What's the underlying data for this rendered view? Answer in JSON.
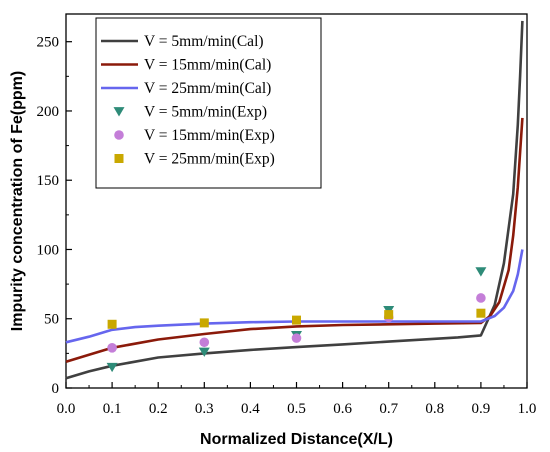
{
  "chart_data": {
    "type": "line",
    "xlabel": "Normalized Distance(X/L)",
    "ylabel": "Impurity concentration of Fe(ppm)",
    "xlim": [
      0.0,
      1.0
    ],
    "ylim": [
      0,
      270
    ],
    "xticks": [
      0.0,
      0.1,
      0.2,
      0.3,
      0.4,
      0.5,
      0.6,
      0.7,
      0.8,
      0.9,
      1.0
    ],
    "yticks": [
      0,
      50,
      100,
      150,
      200,
      250
    ],
    "xtick_labels": [
      "0.0",
      "0.1",
      "0.2",
      "0.3",
      "0.4",
      "0.5",
      "0.6",
      "0.7",
      "0.8",
      "0.9",
      "1.0"
    ],
    "ytick_labels": [
      "0",
      "50",
      "100",
      "150",
      "200",
      "250"
    ],
    "grid": false,
    "legend_position": "top-left",
    "series": [
      {
        "name": "V = 5mm/min(Cal)",
        "kind": "line",
        "color": "#404040",
        "x": [
          0.0,
          0.05,
          0.1,
          0.2,
          0.3,
          0.4,
          0.5,
          0.6,
          0.7,
          0.8,
          0.85,
          0.9,
          0.93,
          0.95,
          0.97,
          0.98,
          0.985,
          0.99
        ],
        "y": [
          7,
          12,
          16,
          22,
          25,
          27.5,
          29.5,
          31.5,
          33.5,
          35.5,
          36.5,
          38,
          60,
          90,
          140,
          190,
          225,
          265
        ]
      },
      {
        "name": "V = 15mm/min(Cal)",
        "kind": "line",
        "color": "#8b1a0a",
        "x": [
          0.0,
          0.05,
          0.1,
          0.2,
          0.3,
          0.4,
          0.5,
          0.6,
          0.7,
          0.8,
          0.9,
          0.92,
          0.94,
          0.96,
          0.97,
          0.98,
          0.99
        ],
        "y": [
          19,
          24,
          29,
          35,
          39,
          42.5,
          44.5,
          45.5,
          46,
          46.5,
          47,
          52,
          62,
          85,
          110,
          145,
          195
        ]
      },
      {
        "name": "V = 25mm/min(Cal)",
        "kind": "line",
        "color": "#6666ee",
        "x": [
          0.0,
          0.05,
          0.1,
          0.15,
          0.2,
          0.3,
          0.4,
          0.5,
          0.6,
          0.7,
          0.8,
          0.9,
          0.93,
          0.95,
          0.97,
          0.98,
          0.99
        ],
        "y": [
          33,
          37,
          42,
          44,
          45,
          46.5,
          47.5,
          48,
          48,
          48,
          48,
          48,
          52,
          58,
          70,
          82,
          100
        ]
      },
      {
        "name": "V = 5mm/min(Exp)",
        "kind": "scatter",
        "marker": "triangle-down",
        "color": "#2e8b78",
        "x": [
          0.1,
          0.3,
          0.5,
          0.7,
          0.9
        ],
        "y": [
          15,
          26,
          38,
          56,
          84
        ]
      },
      {
        "name": "V = 15mm/min(Exp)",
        "kind": "scatter",
        "marker": "circle",
        "color": "#c47ed8",
        "x": [
          0.1,
          0.3,
          0.5,
          0.7,
          0.9
        ],
        "y": [
          29,
          33,
          36,
          51,
          65
        ]
      },
      {
        "name": "V = 25mm/min(Exp)",
        "kind": "scatter",
        "marker": "square",
        "color": "#c9a800",
        "x": [
          0.1,
          0.3,
          0.5,
          0.7,
          0.9
        ],
        "y": [
          46,
          47,
          49,
          53,
          54
        ]
      }
    ]
  }
}
